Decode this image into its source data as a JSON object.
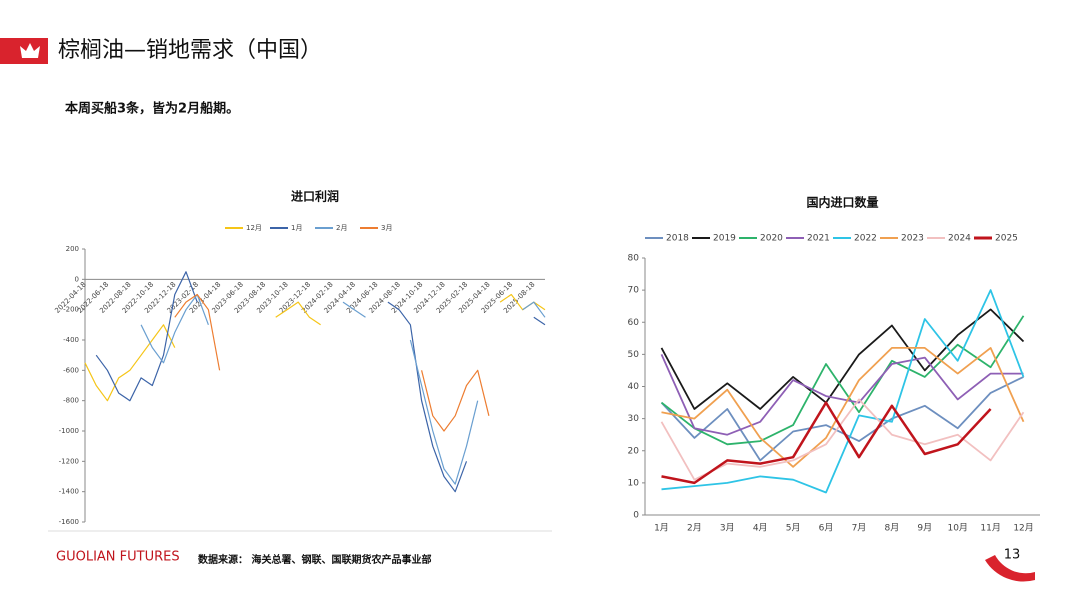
{
  "header": {
    "title": "棕榈油—销地需求（中国）",
    "subtitle": "本周买船3条，皆为2月船期。"
  },
  "footer": {
    "brand": "GUOLIAN FUTURES",
    "source": "数据来源： 海关总署、钢联、国联期货农产品事业部",
    "page": "13"
  },
  "chart_data": [
    {
      "type": "line",
      "title": "进口利润",
      "categories": [
        "2022-04-18",
        null,
        "2022-06-18",
        null,
        "2022-08-18",
        null,
        "2022-10-18",
        null,
        "2022-12-18",
        null,
        "2023-02-18",
        null,
        "2023-04-18",
        null,
        "2023-06-18",
        null,
        "2023-08-18",
        null,
        "2023-10-18",
        null,
        "2023-12-18",
        null,
        "2024-02-18",
        null,
        "2024-04-18",
        null,
        "2024-06-18",
        null,
        "2024-08-18",
        null,
        "2024-10-18",
        null,
        "2024-12-18",
        null,
        "2025-02-18",
        null,
        "2025-04-18",
        null,
        "2025-06-18",
        null,
        "2025-08-18",
        null
      ],
      "series": [
        {
          "name": "12月",
          "color": "#f5c518",
          "values": [
            -550,
            -700,
            -800,
            -650,
            -600,
            -500,
            -400,
            -300,
            -450,
            null,
            null,
            null,
            null,
            null,
            null,
            null,
            null,
            -250,
            -200,
            -150,
            -250,
            -300,
            null,
            null,
            null,
            null,
            null,
            null,
            null,
            null,
            null,
            null,
            null,
            null,
            null,
            null,
            null,
            -150,
            -100,
            -200,
            -150,
            -200
          ]
        },
        {
          "name": "1月",
          "color": "#3c64a8",
          "values": [
            null,
            -500,
            -600,
            -750,
            -800,
            -650,
            -700,
            -500,
            -100,
            50,
            -150,
            null,
            null,
            null,
            null,
            null,
            null,
            null,
            null,
            null,
            null,
            null,
            null,
            null,
            null,
            null,
            null,
            -150,
            -200,
            -300,
            -800,
            -1100,
            -1300,
            -1400,
            -1200,
            null,
            null,
            null,
            null,
            null,
            -250,
            -300
          ]
        },
        {
          "name": "2月",
          "color": "#6a9fd0",
          "values": [
            null,
            null,
            null,
            null,
            null,
            -300,
            -450,
            -550,
            -350,
            -200,
            -100,
            -300,
            null,
            null,
            null,
            null,
            null,
            null,
            null,
            null,
            null,
            null,
            null,
            -150,
            -200,
            -250,
            null,
            null,
            null,
            -400,
            -700,
            -1000,
            -1250,
            -1350,
            -1100,
            -800,
            null,
            null,
            null,
            -200,
            -150,
            -250
          ]
        },
        {
          "name": "3月",
          "color": "#ed7d31",
          "values": [
            null,
            null,
            null,
            null,
            null,
            null,
            null,
            null,
            -250,
            -150,
            -100,
            -200,
            -600,
            null,
            null,
            null,
            null,
            null,
            null,
            null,
            null,
            null,
            null,
            null,
            null,
            null,
            null,
            null,
            null,
            null,
            -600,
            -900,
            -1000,
            -900,
            -700,
            -600,
            -900,
            null,
            null,
            null,
            null,
            null
          ]
        }
      ],
      "ylim": [
        -1600,
        200
      ],
      "yticks": [
        -1600,
        -1400,
        -1200,
        -1000,
        -800,
        -600,
        -400,
        -200,
        0,
        200
      ],
      "x_label_rotation": -45,
      "legend": "top"
    },
    {
      "type": "line",
      "title": "国内进口数量",
      "categories": [
        "1月",
        "2月",
        "3月",
        "4月",
        "5月",
        "6月",
        "7月",
        "8月",
        "9月",
        "10月",
        "11月",
        "12月"
      ],
      "series": [
        {
          "name": "2018",
          "color": "#6d8fbf",
          "values": [
            35,
            24,
            33,
            17,
            26,
            28,
            23,
            30,
            34,
            27,
            38,
            43
          ]
        },
        {
          "name": "2019",
          "color": "#1a1a1a",
          "values": [
            52,
            33,
            41,
            33,
            43,
            35,
            50,
            59,
            45,
            56,
            64,
            54
          ]
        },
        {
          "name": "2020",
          "color": "#2db36b",
          "values": [
            35,
            27,
            22,
            23,
            28,
            47,
            32,
            48,
            43,
            53,
            46,
            62
          ]
        },
        {
          "name": "2021",
          "color": "#8e5fb5",
          "values": [
            50,
            27,
            25,
            29,
            42,
            37,
            35,
            47,
            49,
            36,
            44,
            44
          ]
        },
        {
          "name": "2022",
          "color": "#2ec4e6",
          "values": [
            8,
            9,
            10,
            12,
            11,
            7,
            31,
            29,
            61,
            48,
            70,
            43
          ]
        },
        {
          "name": "2023",
          "color": "#f0a050",
          "values": [
            32,
            30,
            39,
            24,
            15,
            24,
            42,
            52,
            52,
            44,
            52,
            29
          ]
        },
        {
          "name": "2024",
          "color": "#f2c0c0",
          "values": [
            29,
            11,
            16,
            15,
            17,
            22,
            36,
            25,
            22,
            25,
            17,
            32
          ]
        },
        {
          "name": "2025",
          "color": "#c0141c",
          "values": [
            12,
            10,
            17,
            16,
            18,
            35,
            18,
            34,
            19,
            22,
            33,
            null
          ]
        }
      ],
      "ylim": [
        0,
        80
      ],
      "yticks": [
        0,
        10,
        20,
        30,
        40,
        50,
        60,
        70,
        80
      ],
      "x_label_rotation": 0,
      "legend": "top"
    }
  ]
}
